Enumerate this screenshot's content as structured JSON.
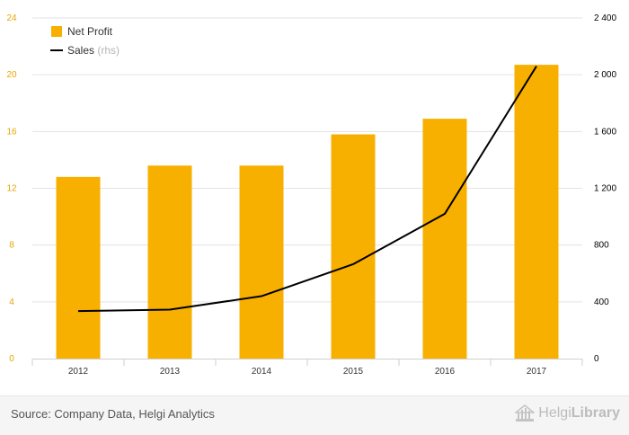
{
  "chart_data": {
    "type": "bar+line",
    "categories": [
      "2012",
      "2013",
      "2014",
      "2015",
      "2016",
      "2017"
    ],
    "series": [
      {
        "name": "Net Profit",
        "type": "bar",
        "axis": "left",
        "color": "#F7B000",
        "values": [
          12.8,
          13.6,
          13.6,
          15.8,
          16.9,
          20.7
        ]
      },
      {
        "name": "Sales",
        "type": "line",
        "axis": "right",
        "color": "#000000",
        "values": [
          335,
          345,
          440,
          665,
          1020,
          2060
        ]
      }
    ],
    "y_left": {
      "ylim": [
        0,
        24
      ],
      "ticks": [
        "0",
        "4",
        "8",
        "12",
        "16",
        "20",
        "24"
      ],
      "tick_color": "#E6A700"
    },
    "y_right": {
      "ylim": [
        0,
        2400
      ],
      "ticks": [
        "0",
        "400",
        "800",
        "1 200",
        "1 600",
        "2 000",
        "2 400"
      ]
    },
    "legend": {
      "position": "top-left",
      "rhs_suffix": "(rhs)"
    },
    "grid": true
  },
  "footer": {
    "source": "Source: Company Data, Helgi Analytics",
    "brand_regular": "Helgi",
    "brand_bold": "Library"
  }
}
